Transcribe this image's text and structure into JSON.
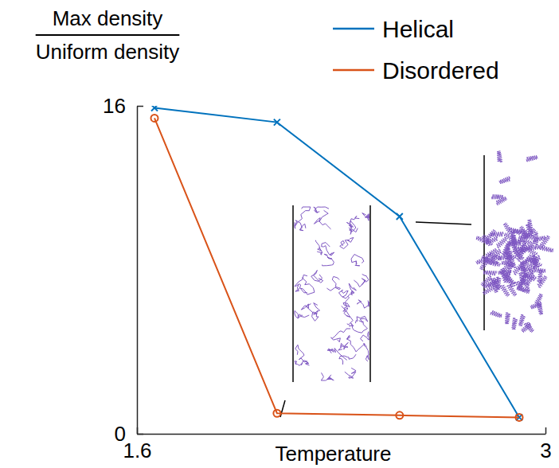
{
  "chart_data": {
    "type": "line",
    "y_label": {
      "numerator": "Max density",
      "denominator": "Uniform density"
    },
    "x_label": "Temperature",
    "x": [
      1.66,
      2.08,
      2.5,
      2.91
    ],
    "series": [
      {
        "name": "Helical",
        "color": "#0072bd",
        "marker": "x",
        "values": [
          15.9,
          15.2,
          10.6,
          0.8
        ]
      },
      {
        "name": "Disordered",
        "color": "#d95319",
        "marker": "circle",
        "values": [
          15.4,
          1.0,
          0.9,
          0.8
        ]
      }
    ],
    "xlim": [
      1.6,
      3
    ],
    "xticks": [
      1.6,
      3
    ],
    "ylim": [
      0,
      16
    ],
    "yticks": [
      0,
      16
    ],
    "legend": "top-right"
  }
}
